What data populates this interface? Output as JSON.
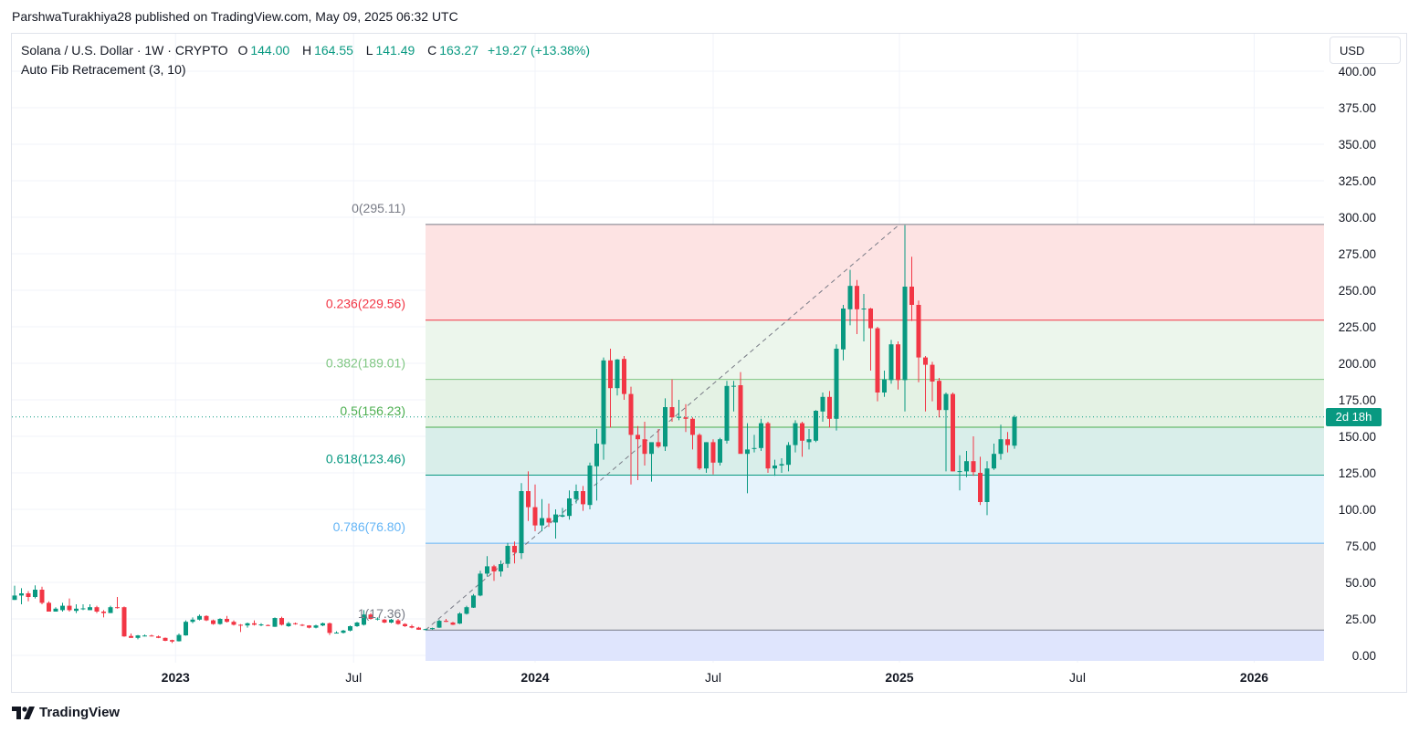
{
  "published": "ParshwaTurakhiya28 published on TradingView.com, May 09, 2025 06:32 UTC",
  "legend": {
    "symbol": "Solana / U.S. Dollar · 1W · CRYPTO",
    "open_label": "O",
    "open": "144.00",
    "high_label": "H",
    "high": "164.55",
    "low_label": "L",
    "low": "141.49",
    "close_label": "C",
    "close": "163.27",
    "change": "+19.27 (+13.38%)",
    "indicator": "Auto Fib Retracement (3, 10)"
  },
  "currency_button": "USD",
  "countdown": "2d 18h",
  "footer_brand": "TradingView",
  "colors": {
    "up": "#089981",
    "down": "#f23645"
  },
  "chart_data": {
    "type": "candlestick",
    "title": "Solana / U.S. Dollar · 1W · CRYPTO",
    "ylim": [
      0,
      400
    ],
    "y_ticks": [
      "0.00",
      "25.00",
      "50.00",
      "75.00",
      "100.00",
      "125.00",
      "150.00",
      "175.00",
      "200.00",
      "225.00",
      "250.00",
      "275.00",
      "300.00",
      "325.00",
      "350.00",
      "375.00",
      "400.00"
    ],
    "x_ticks": [
      {
        "label": "2023",
        "bold": true,
        "week": 23.5
      },
      {
        "label": "Jul",
        "bold": false,
        "week": 49.5
      },
      {
        "label": "2024",
        "bold": true,
        "week": 76
      },
      {
        "label": "Jul",
        "bold": false,
        "week": 102
      },
      {
        "label": "2025",
        "bold": true,
        "week": 129.2
      },
      {
        "label": "Jul",
        "bold": false,
        "week": 155.2
      },
      {
        "label": "2026",
        "bold": true,
        "week": 181
      }
    ],
    "current_price": 163.27,
    "fib": {
      "start_week": 60,
      "end_week": 129.2,
      "levels": [
        {
          "ratio": "0",
          "price": 295.11,
          "label": "0(295.11)",
          "color": "#787b86",
          "fill": "#fde3e3"
        },
        {
          "ratio": "0.236",
          "price": 229.56,
          "label": "0.236(229.56)",
          "color": "#f23645",
          "fill": "#ecf6ec"
        },
        {
          "ratio": "0.382",
          "price": 189.01,
          "label": "0.382(189.01)",
          "color": "#81c784",
          "fill": "#e4f2e4"
        },
        {
          "ratio": "0.5",
          "price": 156.23,
          "label": "0.5(156.23)",
          "color": "#4caf50",
          "fill": "#d9eeea"
        },
        {
          "ratio": "0.618",
          "price": 123.46,
          "label": "0.618(123.46)",
          "color": "#089981",
          "fill": "#e6f3fc"
        },
        {
          "ratio": "0.786",
          "price": 76.8,
          "label": "0.786(76.80)",
          "color": "#64b5f6",
          "fill": "#e9e9eb"
        },
        {
          "ratio": "1",
          "price": 17.36,
          "label": "1(17.36)",
          "color": "#787b86",
          "fill": "#dfe5fd"
        }
      ]
    },
    "ohlc": [
      [
        38,
        47.7,
        38,
        41
      ],
      [
        41,
        46,
        35,
        42.5
      ],
      [
        42.5,
        44,
        37,
        40
      ],
      [
        40,
        48,
        39,
        45
      ],
      [
        45,
        47,
        35,
        36
      ],
      [
        36,
        37,
        30,
        30
      ],
      [
        30,
        33,
        30,
        32
      ],
      [
        31,
        36,
        30,
        34
      ],
      [
        34,
        39,
        30,
        31
      ],
      [
        30.5,
        35,
        29,
        32
      ],
      [
        32,
        35,
        31,
        32.2
      ],
      [
        31,
        35,
        31,
        33
      ],
      [
        33,
        34,
        29,
        30
      ],
      [
        30,
        31,
        26,
        29
      ],
      [
        29,
        34,
        29,
        33
      ],
      [
        33,
        40,
        32,
        32.5
      ],
      [
        33,
        33.5,
        12.7,
        13
      ],
      [
        13.3,
        15,
        12,
        12
      ],
      [
        12,
        14,
        11,
        13.7
      ],
      [
        13.5,
        14.3,
        13,
        13.6
      ],
      [
        13.6,
        14.2,
        13,
        13.4
      ],
      [
        13,
        13.6,
        11.8,
        12
      ],
      [
        12,
        12.3,
        9.8,
        10
      ],
      [
        10.5,
        10.8,
        8.5,
        9.5
      ],
      [
        9.7,
        15,
        9.5,
        14
      ],
      [
        13.7,
        24,
        13.5,
        23
      ],
      [
        23,
        26,
        22,
        24.5
      ],
      [
        24.5,
        28,
        24,
        27
      ],
      [
        27,
        27.5,
        23.5,
        24
      ],
      [
        24,
        24.5,
        21,
        21.5
      ],
      [
        21.5,
        25.5,
        21,
        25
      ],
      [
        25,
        27,
        22.5,
        23
      ],
      [
        23,
        24,
        20.5,
        21
      ],
      [
        21,
        21.5,
        16,
        20.5
      ],
      [
        20.5,
        22.5,
        19,
        22
      ],
      [
        22,
        24,
        20.5,
        21
      ],
      [
        21,
        22,
        20,
        21.2
      ],
      [
        20.8,
        21.2,
        20,
        20.5
      ],
      [
        19.6,
        26,
        19.5,
        25.6
      ],
      [
        25.6,
        26.5,
        20.5,
        21
      ],
      [
        20,
        23,
        19.5,
        22
      ],
      [
        22,
        22.5,
        21,
        21.5
      ],
      [
        21,
        21.5,
        20,
        20.5
      ],
      [
        20.5,
        20.7,
        18.5,
        19
      ],
      [
        19,
        21,
        18.5,
        20.5
      ],
      [
        20.5,
        22.5,
        20,
        22
      ],
      [
        22,
        22.5,
        14,
        15.4
      ],
      [
        15.5,
        16.5,
        15,
        15.6
      ],
      [
        15.5,
        17.5,
        15,
        17
      ],
      [
        17,
        20.5,
        16.5,
        20
      ],
      [
        20,
        23,
        19.5,
        22.5
      ],
      [
        21,
        31,
        20.5,
        28
      ],
      [
        28,
        29,
        24.5,
        25
      ],
      [
        25,
        26,
        24,
        25.2
      ],
      [
        24.5,
        25,
        22,
        22.5
      ],
      [
        22.5,
        25,
        22,
        24.5
      ],
      [
        24,
        25,
        21,
        21.5
      ],
      [
        21.5,
        22,
        19.5,
        20
      ],
      [
        20,
        21,
        18.5,
        19
      ],
      [
        19,
        19.5,
        17.5,
        17.6
      ],
      [
        17.6,
        18.3,
        17.36,
        18
      ],
      [
        18,
        19,
        17.6,
        18.7
      ],
      [
        19,
        24.5,
        18.8,
        23.7
      ],
      [
        23.7,
        25,
        22.8,
        23
      ],
      [
        22.5,
        23,
        20.8,
        21
      ],
      [
        21.8,
        29.5,
        21.5,
        28.7
      ],
      [
        28.5,
        34,
        28,
        33
      ],
      [
        32.7,
        42,
        32.5,
        41
      ],
      [
        41,
        58,
        40.5,
        56
      ],
      [
        56,
        68,
        54,
        61
      ],
      [
        61,
        62,
        51,
        57.5
      ],
      [
        57.5,
        65,
        54,
        62.5
      ],
      [
        62.7,
        77,
        60,
        75
      ],
      [
        75,
        78,
        63,
        70.5
      ],
      [
        70,
        118,
        66,
        112.5
      ],
      [
        112.5,
        126,
        92,
        101.5
      ],
      [
        101.5,
        117,
        85,
        89
      ],
      [
        89,
        107,
        85,
        94
      ],
      [
        94,
        104,
        88,
        91
      ],
      [
        91,
        100,
        80,
        96.5
      ],
      [
        95,
        101,
        94.5,
        96
      ],
      [
        95.5,
        113,
        93,
        107.5
      ],
      [
        107,
        117,
        104,
        112.5
      ],
      [
        112.5,
        116,
        99,
        103.5
      ],
      [
        103,
        132,
        100,
        130
      ],
      [
        129.5,
        155,
        106,
        145
      ],
      [
        144.6,
        204,
        134,
        202
      ],
      [
        202,
        210,
        156,
        183
      ],
      [
        183,
        203,
        178,
        202.6
      ],
      [
        203,
        205,
        175,
        179
      ],
      [
        179,
        184,
        117,
        151
      ],
      [
        151,
        157,
        120,
        148
      ],
      [
        148,
        160,
        130,
        138
      ],
      [
        138,
        145,
        119,
        146
      ],
      [
        146,
        155,
        142,
        143
      ],
      [
        143,
        176,
        140,
        170
      ],
      [
        170,
        189,
        160,
        163
      ],
      [
        163,
        175,
        161,
        163.3
      ],
      [
        163,
        172,
        153,
        162
      ],
      [
        162,
        163,
        141,
        151
      ],
      [
        151,
        152,
        127,
        128
      ],
      [
        128,
        146,
        125,
        146
      ],
      [
        146,
        148,
        124,
        132
      ],
      [
        132,
        149,
        130,
        148
      ],
      [
        147,
        188,
        145,
        184.5
      ],
      [
        184.5,
        188,
        167,
        184.6
      ],
      [
        185,
        194,
        139,
        138
      ],
      [
        138,
        159,
        111,
        141
      ],
      [
        141.5,
        151,
        139,
        142
      ],
      [
        142,
        162,
        140,
        159
      ],
      [
        159,
        160,
        125,
        128
      ],
      [
        128,
        134,
        123,
        130
      ],
      [
        130,
        135,
        125,
        131
      ],
      [
        130.5,
        146,
        126,
        144
      ],
      [
        144,
        161,
        139,
        159
      ],
      [
        159,
        160,
        136,
        147
      ],
      [
        146,
        155,
        141,
        148
      ],
      [
        147,
        168,
        146,
        167.5
      ],
      [
        167,
        180,
        160,
        177
      ],
      [
        177,
        181,
        156,
        162
      ],
      [
        162,
        213,
        154,
        210
      ],
      [
        209.5,
        240,
        202,
        237.5
      ],
      [
        237,
        264,
        226,
        253
      ],
      [
        253,
        257,
        220,
        237
      ],
      [
        237,
        247.5,
        215,
        237.5
      ],
      [
        237.5,
        238,
        195,
        224
      ],
      [
        224,
        225,
        174,
        180
      ],
      [
        180,
        195,
        177,
        189
      ],
      [
        188.5,
        216,
        186,
        213
      ],
      [
        213,
        215,
        182,
        188.5
      ],
      [
        188.5,
        294.6,
        167,
        252.5
      ],
      [
        252.5,
        273,
        229,
        240
      ],
      [
        240,
        243,
        187,
        204
      ],
      [
        204,
        205,
        167,
        199
      ],
      [
        199,
        201,
        174,
        187.5
      ],
      [
        188,
        190,
        163,
        168
      ],
      [
        168,
        180,
        126,
        179
      ],
      [
        179,
        180,
        126,
        126
      ],
      [
        126,
        137,
        113,
        126.2
      ],
      [
        126,
        140,
        122,
        133
      ],
      [
        133,
        150,
        123,
        125.5
      ],
      [
        125,
        136,
        103,
        105
      ],
      [
        105,
        133,
        96,
        128
      ],
      [
        128,
        145,
        127,
        138
      ],
      [
        138,
        158,
        134,
        148
      ],
      [
        148,
        153,
        139,
        144
      ],
      [
        143.6,
        164.55,
        141.49,
        163.27
      ]
    ]
  }
}
